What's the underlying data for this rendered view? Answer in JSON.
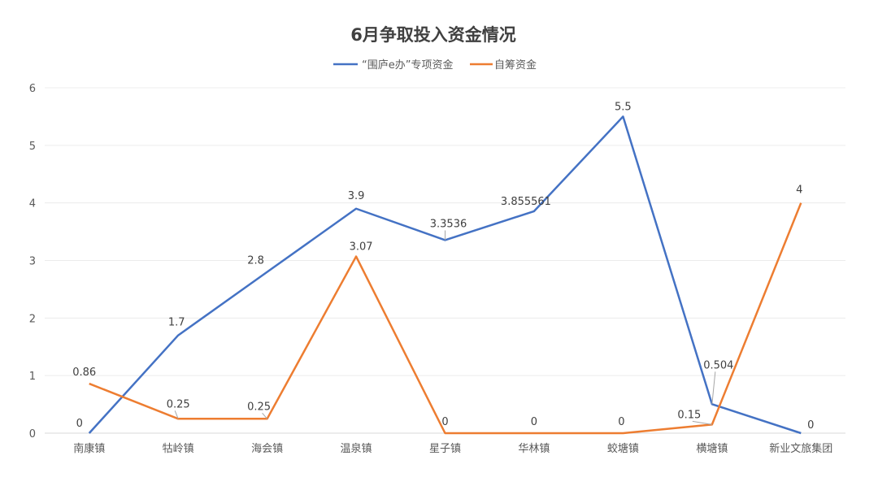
{
  "chart_data": {
    "type": "line",
    "title": "6月争取投入资金情况",
    "xlabel": "",
    "ylabel": "",
    "ylim": [
      0,
      6
    ],
    "yticks": [
      0,
      1,
      2,
      3,
      4,
      5,
      6
    ],
    "grid": true,
    "legend_position": "top",
    "categories": [
      "南康镇",
      "牯岭镇",
      "海会镇",
      "温泉镇",
      "星子镇",
      "华林镇",
      "蛟塘镇",
      "横塘镇",
      "新业文旅集团"
    ],
    "series": [
      {
        "name": "“围庐e办”专项资金",
        "color": "#4472c4",
        "values": [
          0,
          1.7,
          2.8,
          3.9,
          3.3536,
          3.855561,
          5.5,
          0.504,
          0
        ],
        "labels": [
          "0",
          "1.7",
          "2.8",
          "3.9",
          "3.3536",
          "3.855561",
          "5.5",
          "0.504",
          "0"
        ]
      },
      {
        "name": "自筹资金",
        "color": "#ed7d31",
        "values": [
          0.86,
          0.25,
          0.25,
          3.07,
          0,
          0,
          0,
          0.15,
          4
        ],
        "labels": [
          "0.86",
          "0.25",
          "0.25",
          "3.07",
          "0",
          "0",
          "0",
          "0.15",
          "4"
        ]
      }
    ]
  }
}
